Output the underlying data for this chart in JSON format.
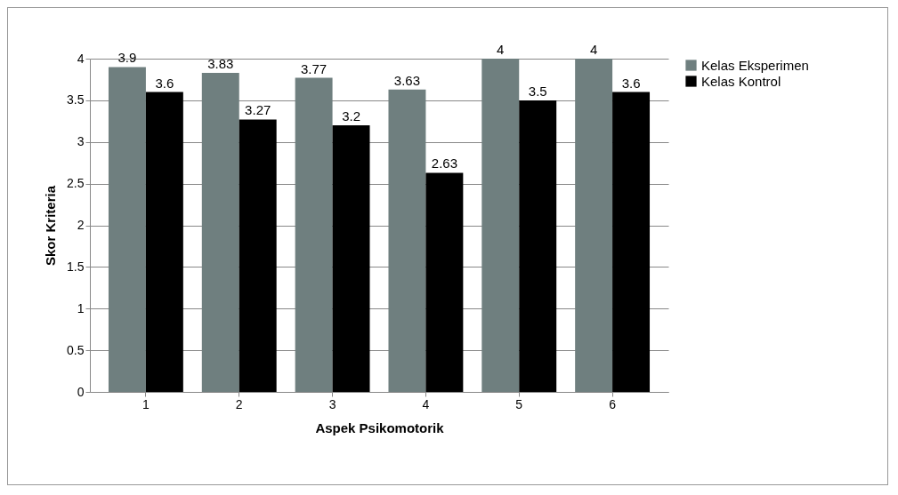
{
  "chart_data": {
    "type": "bar",
    "xlabel": "Aspek Psikomotorik",
    "ylabel": "Skor Kriteria",
    "categories": [
      "1",
      "2",
      "3",
      "4",
      "5",
      "6"
    ],
    "series": [
      {
        "name": "Kelas Eksperimen",
        "color": "#6f7f7f",
        "values": [
          3.9,
          3.83,
          3.77,
          3.63,
          4,
          4
        ]
      },
      {
        "name": "Kelas Kontrol",
        "color": "#000000",
        "values": [
          3.6,
          3.27,
          3.2,
          2.63,
          3.5,
          3.6
        ]
      }
    ],
    "ylim": [
      0,
      4
    ],
    "yticks": [
      0,
      0.5,
      1,
      1.5,
      2,
      2.5,
      3,
      3.5,
      4
    ],
    "grid": "y",
    "legend": "right",
    "data_labels": true
  }
}
